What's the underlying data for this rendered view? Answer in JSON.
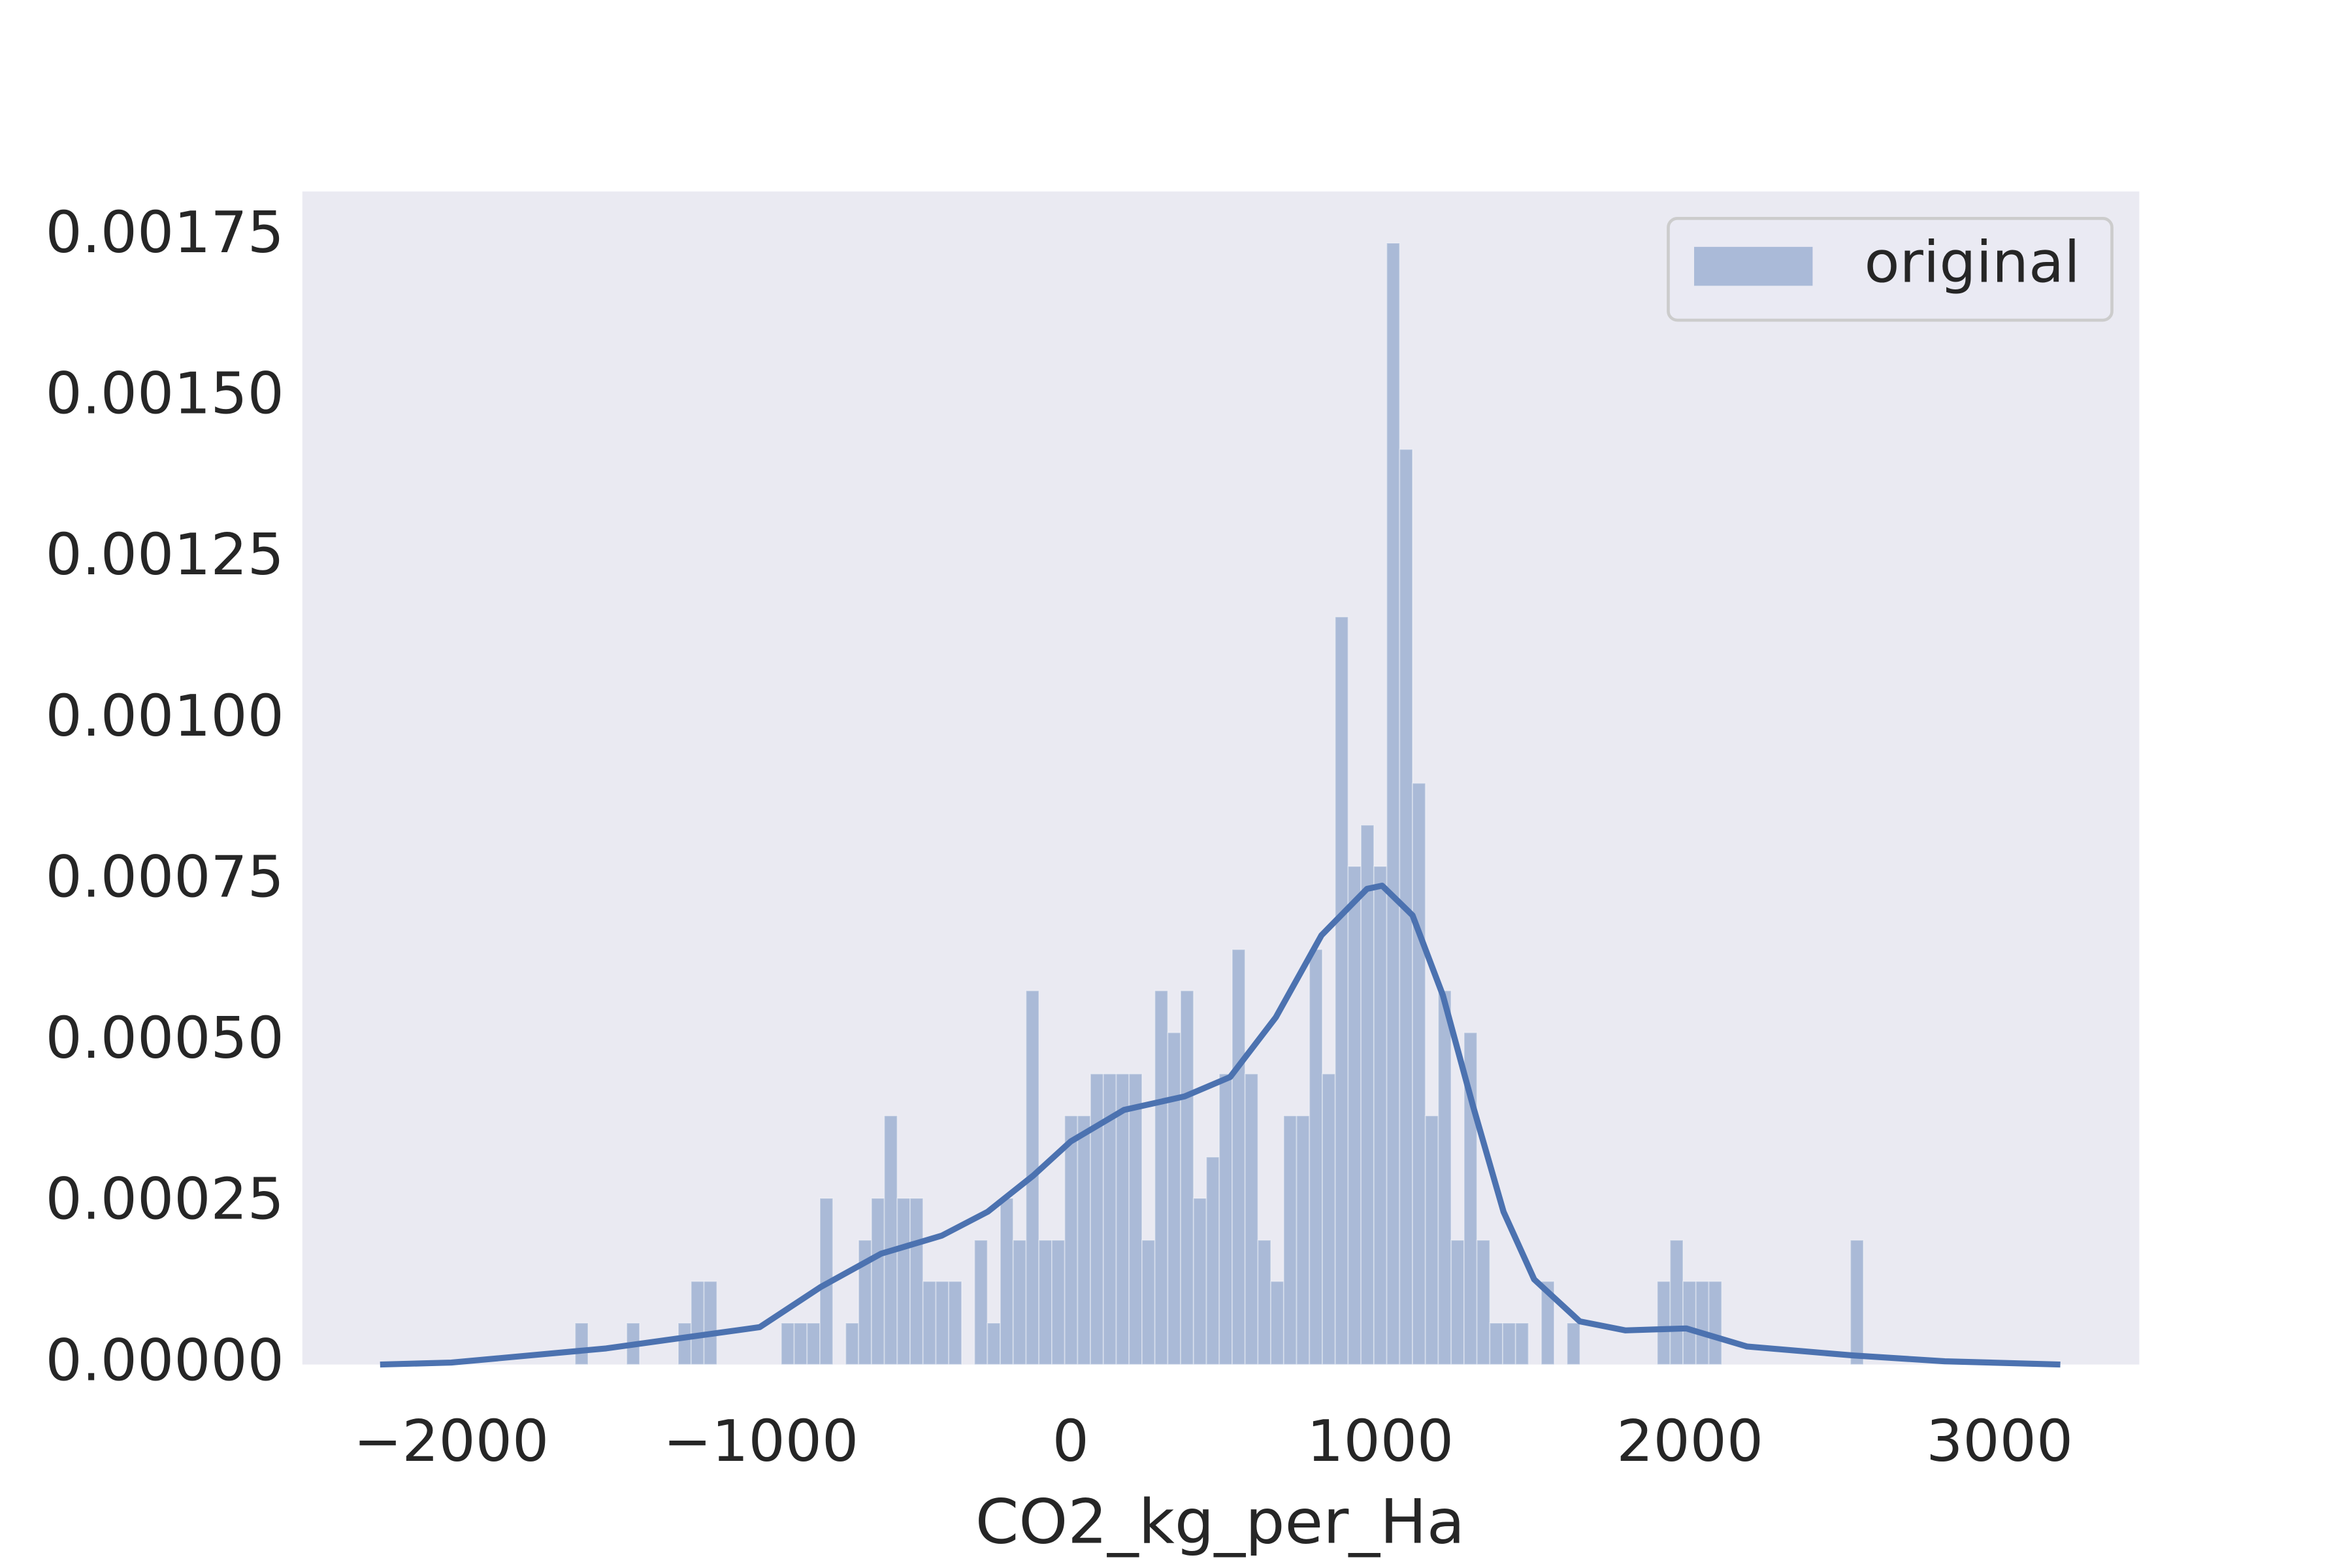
{
  "chart_data": {
    "type": "histogram",
    "xlabel": "CO2_kg_per_Ha",
    "xlim": [
      -2481,
      3451
    ],
    "ylim": [
      0,
      0.00182
    ],
    "xticks": [
      {
        "value": -2000,
        "label": "−2000"
      },
      {
        "value": -1000,
        "label": "−1000"
      },
      0,
      1000,
      2000,
      3000
    ],
    "yticks": [
      {
        "value": 0,
        "label": "0.00000"
      },
      {
        "value": 0.00025,
        "label": "0.00025"
      },
      {
        "value": 0.0005,
        "label": "0.00050"
      },
      {
        "value": 0.00075,
        "label": "0.00075"
      },
      {
        "value": 0.001,
        "label": "0.00100"
      },
      {
        "value": 0.00125,
        "label": "0.00125"
      },
      {
        "value": 0.0015,
        "label": "0.00150"
      },
      {
        "value": 0.00175,
        "label": "0.00175"
      }
    ],
    "grid": true,
    "legend": "upper right",
    "series": [
      {
        "name": "original",
        "color": "#4c72b0",
        "alpha": 0.4,
        "bins": [
          -1600,
          -1558.4,
          -1516.8,
          -1475.2,
          -1433.6,
          -1392,
          -1350.4,
          -1308.8,
          -1267.2,
          -1225.6,
          -1184,
          -1142.4,
          -1100.8,
          -1059.2,
          -1017.6,
          -976,
          -934.4,
          -892.8,
          -851.2,
          -809.6,
          -768,
          -726.4,
          -684.8,
          -643.2,
          -601.6,
          -560,
          -518.4,
          -476.8,
          -435.2,
          -393.6,
          -352,
          -310.4,
          -268.8,
          -227.2,
          -185.6,
          -144,
          -102.4,
          -60.8,
          -19.2,
          22.4,
          64,
          105.6,
          147.2,
          188.8,
          230.4,
          272,
          313.6,
          355.2,
          396.8,
          438.4,
          480,
          521.6,
          563.2,
          604.8,
          646.4,
          688,
          729.6,
          771.2,
          812.8,
          854.4,
          896,
          937.6,
          979.2,
          1020.8,
          1062.4,
          1104,
          1145.6,
          1187.2,
          1228.8,
          1270.4,
          1312,
          1353.6,
          1395.2,
          1436.8,
          1478.4,
          1520,
          1561.6,
          1603.2,
          1644.8,
          1686.4,
          1728,
          1769.6,
          1811.2,
          1852.8,
          1894.4,
          1936,
          1977.6,
          2019.2,
          2060.8,
          2102.4,
          2144,
          2185.6,
          2227.2,
          2268.8,
          2310.4,
          2352,
          2393.6,
          2435.2,
          2476.8,
          2518.4,
          2560
        ],
        "values": [
          6.44e-05,
          0,
          0,
          0,
          6.44e-05,
          0,
          0,
          0,
          6.44e-05,
          0.000129,
          0.000129,
          0,
          0,
          0,
          0,
          0,
          6.44e-05,
          6.44e-05,
          6.44e-05,
          0.000258,
          0,
          6.44e-05,
          0.000193,
          0.000258,
          0.000386,
          0.000258,
          0.000258,
          0.000129,
          0.000129,
          0.000129,
          0,
          0.000193,
          6.44e-05,
          0.000258,
          0.000193,
          0.00058,
          0.000193,
          0.000193,
          0.000386,
          0.000386,
          0.000451,
          0.000451,
          0.000451,
          0.000451,
          0.000193,
          0.00058,
          0.000515,
          0.00058,
          0.000258,
          0.000322,
          0.000451,
          0.000644,
          0.000451,
          0.000193,
          0.000129,
          0.000386,
          0.000386,
          0.000644,
          0.000451,
          0.00116,
          0.000773,
          0.000837,
          0.000773,
          0.00174,
          0.00142,
          0.000902,
          0.000386,
          0.00058,
          0.000193,
          0.000515,
          0.000193,
          6.44e-05,
          6.44e-05,
          6.44e-05,
          0,
          0.000129,
          0,
          6.44e-05,
          0,
          0,
          0,
          0,
          0,
          0,
          0.000129,
          0.000193,
          0.000129,
          0.000129,
          0.000129,
          0,
          0,
          0,
          0,
          0,
          0,
          0,
          0,
          0,
          0,
          0.000193
        ]
      }
    ],
    "kde": {
      "color": "#4c72b0",
      "x": [
        -2230,
        -2000,
        -1500,
        -1004,
        -808,
        -612,
        -416,
        -268,
        -121,
        0,
        172,
        368,
        515,
        663,
        810,
        957,
        1006,
        1104,
        1202,
        1300,
        1398,
        1497,
        1644,
        1791,
        1988,
        2184,
        2528,
        2823,
        3196
      ],
      "values": [
        0,
        3e-06,
        2.5e-05,
        5.8e-05,
        0.00012,
        0.000172,
        0.0002,
        0.000237,
        0.000293,
        0.000346,
        0.000395,
        0.000416,
        0.000446,
        0.000539,
        0.000666,
        0.000738,
        0.000743,
        0.000697,
        0.000573,
        0.0004,
        0.000237,
        0.000132,
        6.7e-05,
        5.3e-05,
        5.6e-05,
        2.8e-05,
        1.4e-05,
        5e-06,
        0
      ]
    }
  }
}
